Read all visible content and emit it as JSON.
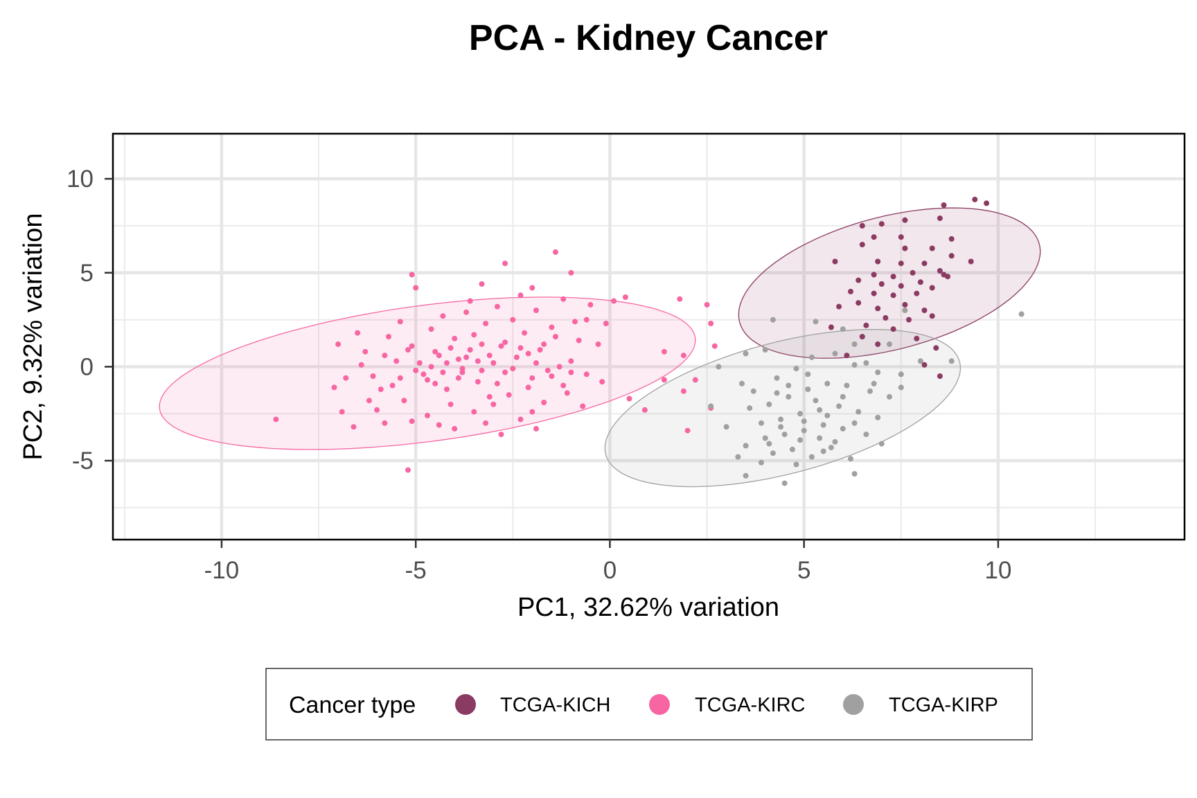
{
  "chart_data": {
    "type": "scatter",
    "title": "PCA - Kidney Cancer",
    "xlabel": "PC1, 32.62% variation",
    "ylabel": "PC2, 9.32% variation",
    "xlim": [
      -12.8,
      14.8
    ],
    "ylim": [
      -9.2,
      12.4
    ],
    "x_ticks": [
      -10,
      -5,
      0,
      5,
      10
    ],
    "x_tick_labels": [
      "-10",
      "-5",
      "0",
      "5",
      "10"
    ],
    "y_ticks": [
      -5,
      0,
      5,
      10
    ],
    "y_tick_labels": [
      "-5",
      "0",
      "5",
      "10"
    ],
    "grid": true,
    "legend": {
      "title": "Cancer type",
      "position": "bottom"
    },
    "series": [
      {
        "name": "TCGA-KICH",
        "color": "#8b3a62",
        "ellipse": {
          "cx": 7.2,
          "cy": 4.45,
          "rx": 4.7,
          "ry": 3.0,
          "angle_deg": 47
        },
        "points": [
          [
            9.4,
            8.9
          ],
          [
            9.7,
            8.7
          ],
          [
            8.6,
            8.6
          ],
          [
            6.5,
            7.5
          ],
          [
            7.0,
            7.6
          ],
          [
            6.8,
            6.9
          ],
          [
            7.6,
            7.8
          ],
          [
            6.5,
            6.5
          ],
          [
            7.5,
            6.9
          ],
          [
            8.5,
            7.9
          ],
          [
            8.8,
            6.8
          ],
          [
            7.6,
            6.3
          ],
          [
            8.3,
            6.3
          ],
          [
            8.8,
            5.9
          ],
          [
            5.8,
            5.6
          ],
          [
            6.9,
            5.6
          ],
          [
            7.5,
            5.5
          ],
          [
            8.1,
            5.5
          ],
          [
            8.5,
            5.1
          ],
          [
            6.8,
            4.9
          ],
          [
            7.3,
            4.8
          ],
          [
            7.8,
            5.0
          ],
          [
            8.6,
            4.9
          ],
          [
            9.3,
            5.6
          ],
          [
            6.4,
            4.6
          ],
          [
            7.0,
            4.4
          ],
          [
            7.5,
            4.3
          ],
          [
            8.0,
            4.5
          ],
          [
            8.7,
            4.8
          ],
          [
            6.2,
            4.0
          ],
          [
            6.8,
            3.9
          ],
          [
            7.3,
            3.8
          ],
          [
            7.9,
            3.9
          ],
          [
            8.3,
            4.2
          ],
          [
            5.9,
            3.2
          ],
          [
            6.4,
            3.4
          ],
          [
            6.9,
            3.1
          ],
          [
            7.6,
            3.3
          ],
          [
            8.1,
            3.0
          ],
          [
            7.1,
            2.6
          ],
          [
            7.7,
            2.5
          ],
          [
            8.3,
            2.7
          ],
          [
            6.6,
            2.2
          ],
          [
            7.3,
            2.0
          ],
          [
            5.7,
            2.1
          ],
          [
            6.5,
            1.6
          ],
          [
            7.9,
            1.5
          ],
          [
            6.9,
            1.2
          ],
          [
            8.4,
            1.0
          ],
          [
            6.1,
            0.6
          ],
          [
            8.1,
            0.1
          ],
          [
            8.5,
            -0.5
          ]
        ]
      },
      {
        "name": "TCGA-KIRC",
        "color": "#f766a3",
        "ellipse": {
          "cx": -4.7,
          "cy": -0.35,
          "rx": 7.2,
          "ry": 3.5,
          "angle_deg": 19
        },
        "points": [
          [
            -8.6,
            -2.8
          ],
          [
            -5.2,
            -5.5
          ],
          [
            -5.1,
            4.9
          ],
          [
            -2.7,
            5.5
          ],
          [
            -1.4,
            6.1
          ],
          [
            -1.0,
            5.0
          ],
          [
            0.4,
            3.7
          ],
          [
            1.8,
            3.6
          ],
          [
            2.5,
            3.3
          ],
          [
            2.6,
            2.3
          ],
          [
            2.7,
            1.1
          ],
          [
            1.4,
            0.8
          ],
          [
            -0.1,
            2.3
          ],
          [
            0.1,
            3.5
          ],
          [
            -0.6,
            2.5
          ],
          [
            1.9,
            0.6
          ],
          [
            1.4,
            -0.7
          ],
          [
            2.2,
            -0.7
          ],
          [
            1.9,
            -1.3
          ],
          [
            2.6,
            -2.2
          ],
          [
            0.5,
            -1.7
          ],
          [
            0.9,
            -2.3
          ],
          [
            2.0,
            -3.4
          ],
          [
            -2.8,
            -3.6
          ],
          [
            -1.9,
            -3.3
          ],
          [
            -6.6,
            -3.2
          ],
          [
            -7.0,
            1.2
          ],
          [
            -7.1,
            -1.1
          ],
          [
            -6.3,
            0.8
          ],
          [
            -5.0,
            4.2
          ],
          [
            -3.3,
            4.4
          ],
          [
            -2.0,
            4.2
          ],
          [
            -0.5,
            3.3
          ],
          [
            -6.8,
            -0.6
          ],
          [
            -5.9,
            -1.2
          ],
          [
            -5.5,
            0.3
          ],
          [
            -5.1,
            1.1
          ],
          [
            -4.8,
            -0.4
          ],
          [
            -4.6,
            2.0
          ],
          [
            -4.4,
            0.6
          ],
          [
            -4.2,
            -1.2
          ],
          [
            -4.0,
            1.5
          ],
          [
            -3.8,
            -0.1
          ],
          [
            -3.6,
            0.9
          ],
          [
            -3.4,
            -0.8
          ],
          [
            -3.2,
            2.3
          ],
          [
            -3.0,
            0.2
          ],
          [
            -2.8,
            1.1
          ],
          [
            -2.6,
            -1.5
          ],
          [
            -2.4,
            0.5
          ],
          [
            -2.2,
            1.8
          ],
          [
            -2.0,
            -0.6
          ],
          [
            -1.8,
            0.9
          ],
          [
            -1.6,
            -0.2
          ],
          [
            -1.4,
            1.6
          ],
          [
            -1.2,
            -1.0
          ],
          [
            -1.0,
            0.3
          ],
          [
            -0.8,
            1.4
          ],
          [
            -0.6,
            -0.4
          ],
          [
            -6.0,
            -2.3
          ],
          [
            -5.7,
            1.6
          ],
          [
            -5.3,
            -1.8
          ],
          [
            -5.0,
            -0.2
          ],
          [
            -4.7,
            -2.6
          ],
          [
            -4.5,
            -0.9
          ],
          [
            -4.3,
            2.7
          ],
          [
            -4.1,
            -2.0
          ],
          [
            -3.9,
            0.4
          ],
          [
            -3.7,
            2.9
          ],
          [
            -3.5,
            -2.4
          ],
          [
            -3.3,
            1.2
          ],
          [
            -3.1,
            -1.6
          ],
          [
            -2.9,
            3.2
          ],
          [
            -2.7,
            -0.3
          ],
          [
            -2.5,
            2.5
          ],
          [
            -2.3,
            -2.8
          ],
          [
            -2.1,
            0.7
          ],
          [
            -1.9,
            3.0
          ],
          [
            -1.7,
            -1.9
          ],
          [
            -1.5,
            2.1
          ],
          [
            -1.3,
            0.0
          ],
          [
            -1.1,
            -1.4
          ],
          [
            -0.9,
            2.4
          ],
          [
            -0.7,
            -2.1
          ],
          [
            -6.4,
            0.1
          ],
          [
            -6.1,
            -0.5
          ],
          [
            -5.8,
            0.6
          ],
          [
            -5.6,
            -1.0
          ],
          [
            -5.4,
            -0.6
          ],
          [
            -5.2,
            0.9
          ],
          [
            -4.9,
            0.2
          ],
          [
            -4.7,
            -0.7
          ],
          [
            -4.5,
            0.8
          ],
          [
            -4.3,
            -0.3
          ],
          [
            -4.1,
            1.0
          ],
          [
            -3.9,
            -0.6
          ],
          [
            -3.7,
            0.5
          ],
          [
            -3.5,
            1.7
          ],
          [
            -3.3,
            -0.2
          ],
          [
            -3.1,
            0.6
          ],
          [
            -2.9,
            -0.9
          ],
          [
            -2.7,
            1.3
          ],
          [
            -2.5,
            -0.1
          ],
          [
            -2.3,
            1.0
          ],
          [
            -2.1,
            -1.1
          ],
          [
            -1.9,
            0.2
          ],
          [
            -1.7,
            1.2
          ],
          [
            -1.5,
            -0.5
          ],
          [
            -4.6,
            0.0
          ],
          [
            -4.2,
            0.2
          ],
          [
            -3.8,
            -0.3
          ],
          [
            -3.4,
            0.3
          ],
          [
            -5.8,
            -3.0
          ],
          [
            -4.0,
            -3.3
          ],
          [
            -3.0,
            -2.0
          ],
          [
            -6.9,
            -2.4
          ],
          [
            -6.5,
            1.8
          ],
          [
            -5.4,
            2.4
          ],
          [
            -3.6,
            3.5
          ],
          [
            -2.3,
            3.8
          ],
          [
            -1.2,
            3.6
          ],
          [
            -0.3,
            1.2
          ],
          [
            -0.2,
            -0.8
          ],
          [
            -6.2,
            -1.8
          ],
          [
            -5.1,
            -2.9
          ],
          [
            -4.4,
            -3.1
          ],
          [
            -3.2,
            -3.0
          ],
          [
            -2.0,
            -2.4
          ],
          [
            -1.0,
            -0.3
          ]
        ]
      },
      {
        "name": "TCGA-KIRP",
        "color": "#a0a0a0",
        "ellipse": {
          "cx": 4.45,
          "cy": -2.2,
          "rx": 5.4,
          "ry": 3.05,
          "angle_deg": 40
        },
        "points": [
          [
            10.6,
            2.8
          ],
          [
            2.8,
            0.0
          ],
          [
            2.6,
            -2.1
          ],
          [
            3.0,
            -3.2
          ],
          [
            3.5,
            -5.8
          ],
          [
            4.5,
            -6.2
          ],
          [
            6.3,
            -5.7
          ],
          [
            4.2,
            2.5
          ],
          [
            5.3,
            2.4
          ],
          [
            6.0,
            2.0
          ],
          [
            3.5,
            0.7
          ],
          [
            4.0,
            0.9
          ],
          [
            7.2,
            1.2
          ],
          [
            8.0,
            0.3
          ],
          [
            8.8,
            0.3
          ],
          [
            7.5,
            -0.4
          ],
          [
            6.6,
            0.2
          ],
          [
            3.7,
            -1.3
          ],
          [
            4.3,
            -0.6
          ],
          [
            4.8,
            -0.1
          ],
          [
            5.2,
            0.5
          ],
          [
            5.8,
            0.7
          ],
          [
            6.3,
            0.1
          ],
          [
            6.9,
            -0.3
          ],
          [
            3.6,
            -2.2
          ],
          [
            4.1,
            -2.0
          ],
          [
            4.6,
            -1.6
          ],
          [
            5.1,
            -1.2
          ],
          [
            5.6,
            -0.9
          ],
          [
            6.1,
            -1.0
          ],
          [
            6.7,
            -1.3
          ],
          [
            7.2,
            -1.6
          ],
          [
            3.9,
            -3.0
          ],
          [
            4.4,
            -2.8
          ],
          [
            4.9,
            -2.5
          ],
          [
            5.4,
            -2.3
          ],
          [
            5.9,
            -2.1
          ],
          [
            6.4,
            -2.4
          ],
          [
            6.9,
            -2.7
          ],
          [
            3.5,
            -4.2
          ],
          [
            4.0,
            -3.8
          ],
          [
            4.5,
            -3.6
          ],
          [
            5.0,
            -3.4
          ],
          [
            5.5,
            -3.1
          ],
          [
            6.0,
            -3.3
          ],
          [
            6.6,
            -3.6
          ],
          [
            7.0,
            -4.1
          ],
          [
            4.2,
            -4.6
          ],
          [
            4.7,
            -4.4
          ],
          [
            5.2,
            -4.8
          ],
          [
            5.7,
            -4.3
          ],
          [
            6.2,
            -4.9
          ],
          [
            3.9,
            -5.1
          ],
          [
            4.8,
            -5.2
          ],
          [
            3.3,
            -4.8
          ],
          [
            4.6,
            -1.0
          ],
          [
            5.3,
            -1.8
          ],
          [
            5.6,
            -2.6
          ],
          [
            4.4,
            -3.2
          ],
          [
            5.0,
            -2.9
          ],
          [
            5.4,
            -3.8
          ],
          [
            4.1,
            -4.1
          ],
          [
            6.8,
            -0.9
          ],
          [
            7.5,
            -1.1
          ],
          [
            5.8,
            -4.0
          ],
          [
            3.4,
            -0.9
          ],
          [
            4.9,
            -3.9
          ],
          [
            6.3,
            -3.0
          ],
          [
            5.1,
            -0.4
          ],
          [
            7.6,
            3.0
          ],
          [
            6.3,
            1.2
          ],
          [
            6.0,
            -1.6
          ],
          [
            4.3,
            -1.4
          ],
          [
            5.5,
            -4.5
          ]
        ]
      }
    ]
  }
}
